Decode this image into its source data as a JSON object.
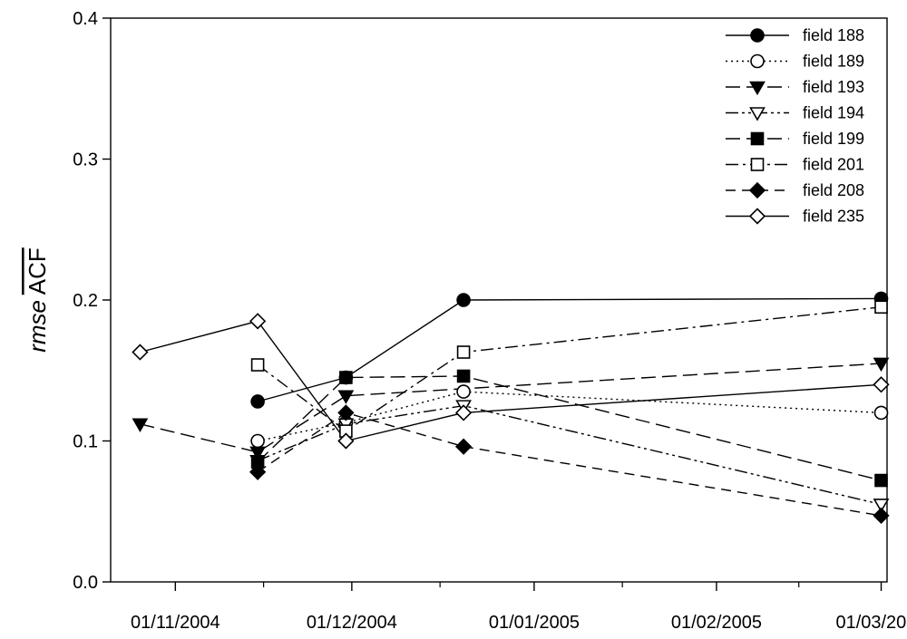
{
  "chart_data": {
    "type": "line",
    "title": "",
    "xlabel": "",
    "ylabel": {
      "prefix": "rmse",
      "main": "ACF"
    },
    "ylim": [
      0.0,
      0.4
    ],
    "xlim": [
      "2004-10-21",
      "2005-03-02"
    ],
    "yticks": [
      "0.0",
      "0.1",
      "0.2",
      "0.3",
      "0.4"
    ],
    "xticks": [
      {
        "date": "2004-11-01",
        "label": "01/11/2004"
      },
      {
        "date": "2004-12-01",
        "label": "01/12/2004"
      },
      {
        "date": "2005-01-01",
        "label": "01/01/2005"
      },
      {
        "date": "2005-02-01",
        "label": "01/02/2005"
      },
      {
        "date": "2005-03-01",
        "label": "01/03/2005"
      }
    ],
    "legend_position": "top-right",
    "grid": false,
    "series": [
      {
        "name": "field 188",
        "marker": "circle",
        "filled": true,
        "dash": "solid",
        "points": [
          [
            "2004-11-15",
            0.128
          ],
          [
            "2004-11-30",
            0.145
          ],
          [
            "2004-12-20",
            0.2
          ],
          [
            "2005-03-01",
            0.201
          ]
        ]
      },
      {
        "name": "field 189",
        "marker": "circle",
        "filled": false,
        "dash": "dot",
        "points": [
          [
            "2004-11-15",
            0.1
          ],
          [
            "2004-11-30",
            0.113
          ],
          [
            "2004-12-20",
            0.135
          ],
          [
            "2005-03-01",
            0.12
          ]
        ]
      },
      {
        "name": "field 193",
        "marker": "triangle-down",
        "filled": true,
        "dash": "longdash",
        "points": [
          [
            "2004-10-26",
            0.112
          ],
          [
            "2004-11-15",
            0.092
          ],
          [
            "2004-11-30",
            0.132
          ],
          [
            "2005-03-01",
            0.155
          ]
        ]
      },
      {
        "name": "field 194",
        "marker": "triangle-down",
        "filled": false,
        "dash": "dashdotdot",
        "points": [
          [
            "2004-11-15",
            0.086
          ],
          [
            "2004-11-30",
            0.112
          ],
          [
            "2004-12-20",
            0.125
          ],
          [
            "2005-03-01",
            0.055
          ]
        ]
      },
      {
        "name": "field 199",
        "marker": "square",
        "filled": true,
        "dash": "longdash",
        "points": [
          [
            "2004-11-15",
            0.085
          ],
          [
            "2004-11-30",
            0.145
          ],
          [
            "2004-12-20",
            0.146
          ],
          [
            "2005-03-01",
            0.072
          ]
        ]
      },
      {
        "name": "field 201",
        "marker": "square",
        "filled": false,
        "dash": "dashdot",
        "points": [
          [
            "2004-11-15",
            0.154
          ],
          [
            "2004-11-30",
            0.107
          ],
          [
            "2004-12-20",
            0.163
          ],
          [
            "2005-03-01",
            0.195
          ]
        ]
      },
      {
        "name": "field 208",
        "marker": "diamond",
        "filled": true,
        "dash": "dash",
        "points": [
          [
            "2004-11-15",
            0.078
          ],
          [
            "2004-11-30",
            0.12
          ],
          [
            "2004-12-20",
            0.096
          ],
          [
            "2005-03-01",
            0.047
          ]
        ]
      },
      {
        "name": "field 235",
        "marker": "diamond",
        "filled": false,
        "dash": "solid",
        "points": [
          [
            "2004-10-26",
            0.163
          ],
          [
            "2004-11-15",
            0.185
          ],
          [
            "2004-11-30",
            0.1
          ],
          [
            "2004-12-20",
            0.12
          ],
          [
            "2005-03-01",
            0.14
          ]
        ]
      }
    ]
  }
}
